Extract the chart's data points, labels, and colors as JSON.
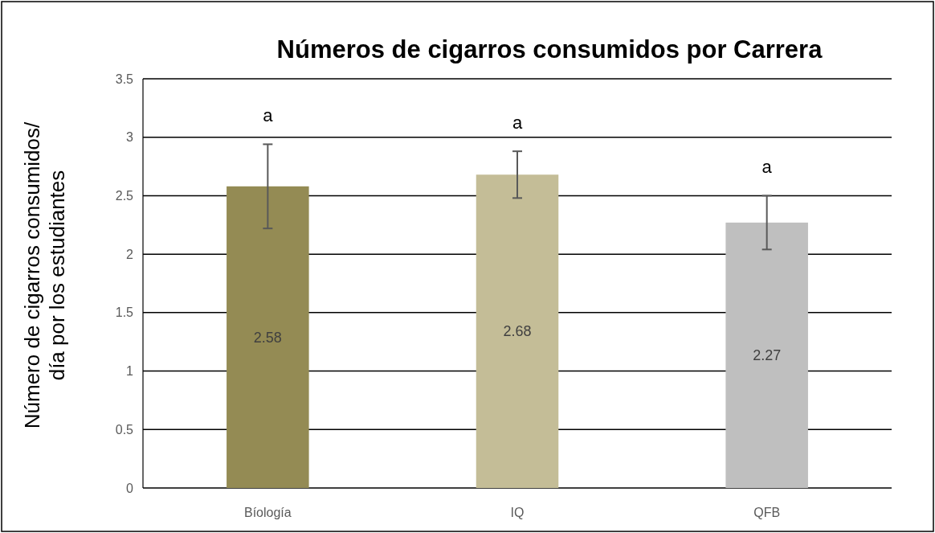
{
  "chart_data": {
    "type": "bar",
    "title": "Números de cigarros consumidos por Carrera",
    "ylabel": "Número de cigarros consumidos/\ndía por los estudiantes",
    "categories": [
      "Bíología",
      "IQ",
      "QFB"
    ],
    "values": [
      2.58,
      2.68,
      2.27
    ],
    "colors": [
      "#948b54",
      "#c4bd97",
      "#bfbfbf"
    ],
    "errors": [
      0.36,
      0.2,
      0.23
    ],
    "data_labels": true,
    "ylim": [
      0,
      3.5
    ],
    "yticks": [
      0,
      0.5,
      1,
      1.5,
      2,
      2.5,
      3,
      3.5
    ],
    "grid": "y",
    "annotations": [
      "a",
      "a",
      "a"
    ]
  }
}
